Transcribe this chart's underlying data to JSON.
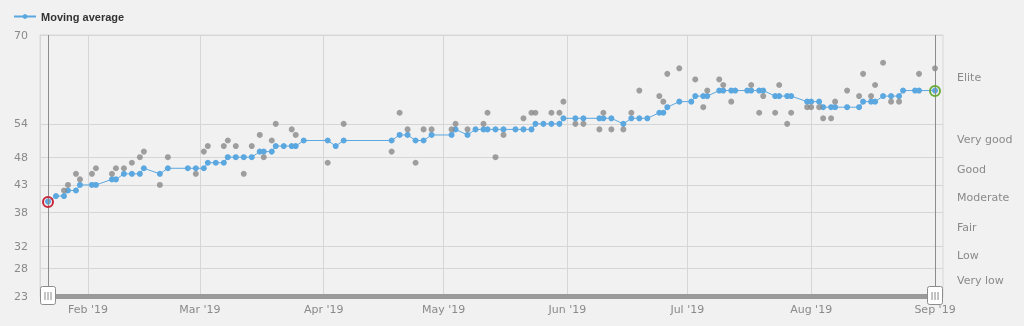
{
  "chart_data": {
    "type": "line",
    "legend": "top left",
    "grid": true,
    "marker": "circle",
    "xlim": [
      "2019-01-20",
      "2019-09-03"
    ],
    "xticks": [
      {
        "value": "2019-02-01",
        "label": "Feb '19"
      },
      {
        "value": "2019-03-01",
        "label": "Mar '19"
      },
      {
        "value": "2019-04-01",
        "label": "Apr '19"
      },
      {
        "value": "2019-05-01",
        "label": "May '19"
      },
      {
        "value": "2019-06-01",
        "label": "Jun '19"
      },
      {
        "value": "2019-07-01",
        "label": "Jul '19"
      },
      {
        "value": "2019-08-01",
        "label": "Aug '19"
      },
      {
        "value": "2019-09-01",
        "label": "Sep '19"
      }
    ],
    "ylim": [
      23,
      70
    ],
    "yticks": [
      23,
      28,
      32,
      38,
      43,
      48,
      54,
      70
    ],
    "annotations": [
      "Elite",
      "Very good",
      "Good",
      "Moderate",
      "Fair",
      "Low",
      "Very low"
    ],
    "ref_lines": [
      {
        "axis": "x",
        "value": "2019-01-22",
        "color": "#8c8c8c"
      },
      {
        "axis": "x",
        "value": "2019-09-01",
        "color": "#8c8c8c"
      }
    ],
    "series": [
      {
        "name": "Moving average",
        "color": "#5ba7e0",
        "x": [
          "2019-01-22",
          "2019-01-24",
          "2019-01-26",
          "2019-01-27",
          "2019-01-29",
          "2019-01-30",
          "2019-02-02",
          "2019-02-03",
          "2019-02-07",
          "2019-02-08",
          "2019-02-10",
          "2019-02-12",
          "2019-02-14",
          "2019-02-15",
          "2019-02-19",
          "2019-02-21",
          "2019-02-26",
          "2019-02-28",
          "2019-03-02",
          "2019-03-03",
          "2019-03-05",
          "2019-03-07",
          "2019-03-08",
          "2019-03-10",
          "2019-03-12",
          "2019-03-14",
          "2019-03-16",
          "2019-03-17",
          "2019-03-19",
          "2019-03-20",
          "2019-03-22",
          "2019-03-24",
          "2019-03-25",
          "2019-03-27",
          "2019-04-02",
          "2019-04-04",
          "2019-04-06",
          "2019-04-18",
          "2019-04-20",
          "2019-04-22",
          "2019-04-24",
          "2019-04-26",
          "2019-04-28",
          "2019-05-03",
          "2019-05-04",
          "2019-05-07",
          "2019-05-09",
          "2019-05-11",
          "2019-05-12",
          "2019-05-14",
          "2019-05-16",
          "2019-05-19",
          "2019-05-21",
          "2019-05-23",
          "2019-05-24",
          "2019-05-26",
          "2019-05-28",
          "2019-05-30",
          "2019-05-31",
          "2019-06-03",
          "2019-06-05",
          "2019-06-09",
          "2019-06-10",
          "2019-06-12",
          "2019-06-15",
          "2019-06-17",
          "2019-06-19",
          "2019-06-21",
          "2019-06-24",
          "2019-06-25",
          "2019-06-26",
          "2019-06-29",
          "2019-07-02",
          "2019-07-03",
          "2019-07-05",
          "2019-07-06",
          "2019-07-09",
          "2019-07-10",
          "2019-07-12",
          "2019-07-13",
          "2019-07-16",
          "2019-07-17",
          "2019-07-19",
          "2019-07-20",
          "2019-07-23",
          "2019-07-24",
          "2019-07-26",
          "2019-07-27",
          "2019-07-31",
          "2019-08-01",
          "2019-08-03",
          "2019-08-04",
          "2019-08-06",
          "2019-08-07",
          "2019-08-10",
          "2019-08-13",
          "2019-08-14",
          "2019-08-16",
          "2019-08-17",
          "2019-08-19",
          "2019-08-21",
          "2019-08-23",
          "2019-08-24",
          "2019-08-27",
          "2019-08-28",
          "2019-09-01"
        ],
        "values": [
          40,
          41,
          41,
          42,
          42,
          43,
          43,
          43,
          44,
          44,
          45,
          45,
          45,
          46,
          45,
          46,
          46,
          46,
          46,
          47,
          47,
          47,
          48,
          48,
          48,
          48,
          49,
          49,
          49,
          50,
          50,
          50,
          50,
          51,
          51,
          50,
          51,
          51,
          52,
          52,
          51,
          51,
          52,
          52,
          53,
          52,
          53,
          53,
          53,
          53,
          53,
          53,
          53,
          53,
          54,
          54,
          54,
          54,
          55,
          55,
          55,
          55,
          55,
          55,
          54,
          55,
          55,
          55,
          56,
          56,
          57,
          58,
          58,
          59,
          59,
          59,
          60,
          60,
          60,
          60,
          60,
          60,
          60,
          60,
          59,
          59,
          59,
          59,
          58,
          58,
          58,
          57,
          57,
          57,
          57,
          57,
          58,
          58,
          58,
          59,
          59,
          59,
          60,
          60,
          60,
          60
        ]
      },
      {
        "type": "scatter",
        "color": "#8a8a8a",
        "x": [
          "2019-01-26",
          "2019-01-27",
          "2019-01-29",
          "2019-01-30",
          "2019-02-02",
          "2019-02-03",
          "2019-02-07",
          "2019-02-08",
          "2019-02-10",
          "2019-02-12",
          "2019-02-14",
          "2019-02-15",
          "2019-02-19",
          "2019-02-21",
          "2019-02-28",
          "2019-03-02",
          "2019-03-03",
          "2019-03-07",
          "2019-03-08",
          "2019-03-10",
          "2019-03-12",
          "2019-03-14",
          "2019-03-16",
          "2019-03-17",
          "2019-03-19",
          "2019-03-20",
          "2019-03-24",
          "2019-03-25",
          "2019-04-02",
          "2019-04-06",
          "2019-04-18",
          "2019-04-20",
          "2019-04-22",
          "2019-04-24",
          "2019-04-26",
          "2019-04-28",
          "2019-05-03",
          "2019-05-04",
          "2019-05-07",
          "2019-05-11",
          "2019-05-12",
          "2019-05-14",
          "2019-05-16",
          "2019-05-21",
          "2019-05-23",
          "2019-05-24",
          "2019-05-28",
          "2019-05-30",
          "2019-05-31",
          "2019-06-03",
          "2019-06-05",
          "2019-06-09",
          "2019-06-10",
          "2019-06-12",
          "2019-06-15",
          "2019-06-17",
          "2019-06-19",
          "2019-06-24",
          "2019-06-25",
          "2019-06-26",
          "2019-06-29",
          "2019-07-03",
          "2019-07-05",
          "2019-07-06",
          "2019-07-09",
          "2019-07-10",
          "2019-07-12",
          "2019-07-17",
          "2019-07-19",
          "2019-07-20",
          "2019-07-23",
          "2019-07-24",
          "2019-07-26",
          "2019-07-27",
          "2019-07-31",
          "2019-08-01",
          "2019-08-03",
          "2019-08-04",
          "2019-08-06",
          "2019-08-07",
          "2019-08-10",
          "2019-08-13",
          "2019-08-14",
          "2019-08-16",
          "2019-08-17",
          "2019-08-19",
          "2019-08-21",
          "2019-08-23",
          "2019-08-28",
          "2019-09-01"
        ],
        "values": [
          42,
          43,
          45,
          44,
          45,
          46,
          45,
          46,
          46,
          47,
          48,
          49,
          43,
          48,
          45,
          49,
          50,
          50,
          51,
          50,
          45,
          50,
          52,
          48,
          51,
          54,
          53,
          52,
          47,
          54,
          49,
          56,
          53,
          47,
          53,
          53,
          53,
          54,
          53,
          54,
          56,
          48,
          52,
          55,
          56,
          56,
          56,
          56,
          58,
          54,
          54,
          53,
          56,
          53,
          53,
          56,
          60,
          59,
          58,
          63,
          64,
          62,
          57,
          60,
          62,
          61,
          58,
          61,
          56,
          59,
          56,
          61,
          54,
          56,
          57,
          57,
          57,
          55,
          55,
          58,
          60,
          59,
          63,
          59,
          61,
          65,
          58,
          58,
          63,
          64
        ]
      }
    ]
  }
}
